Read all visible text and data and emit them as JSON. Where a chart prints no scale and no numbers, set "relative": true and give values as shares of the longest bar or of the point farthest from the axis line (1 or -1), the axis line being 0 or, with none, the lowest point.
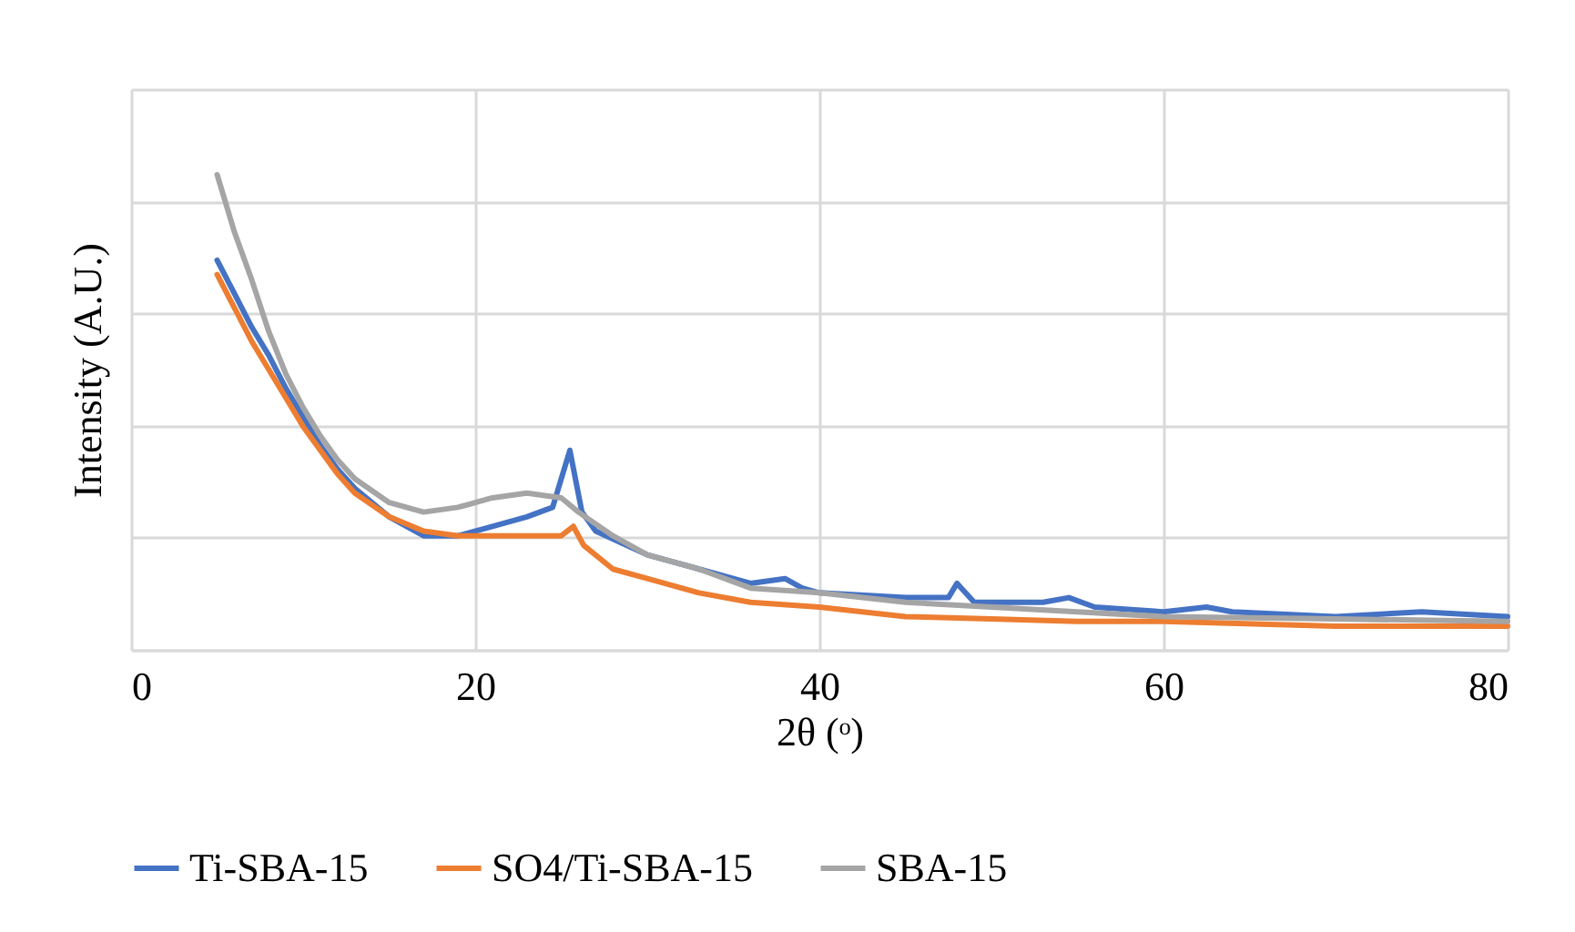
{
  "chart_data": {
    "type": "line",
    "xlabel": "2θ (ᵒ)",
    "ylabel": "Intensity (A.U.)",
    "relative": true,
    "xlim": [
      0,
      80
    ],
    "xticks": [
      0,
      20,
      40,
      60,
      80
    ],
    "grid": true,
    "legend": "bottom",
    "series": [
      {
        "name": "Ti-SBA-15",
        "color": "#4472c4",
        "x": [
          5,
          6,
          7,
          8,
          9,
          10,
          11,
          12,
          13,
          15,
          17,
          19,
          21,
          23,
          24.5,
          25.5,
          26.2,
          27,
          30,
          33,
          36,
          38,
          39,
          40,
          45,
          47.5,
          48,
          49,
          53,
          54.5,
          56,
          60,
          62.5,
          64,
          70,
          75,
          80
        ],
        "values": [
          0.82,
          0.75,
          0.68,
          0.62,
          0.55,
          0.49,
          0.43,
          0.38,
          0.34,
          0.28,
          0.24,
          0.24,
          0.26,
          0.28,
          0.3,
          0.42,
          0.29,
          0.25,
          0.2,
          0.17,
          0.14,
          0.15,
          0.13,
          0.12,
          0.11,
          0.11,
          0.14,
          0.1,
          0.1,
          0.11,
          0.09,
          0.08,
          0.09,
          0.08,
          0.07,
          0.08,
          0.07
        ]
      },
      {
        "name": "SO4/Ti-SBA-15",
        "color": "#ed7d31",
        "x": [
          5,
          6,
          7,
          8,
          9,
          10,
          11,
          12,
          13,
          15,
          17,
          19,
          21,
          23,
          25,
          25.7,
          26.3,
          28,
          30,
          33,
          36,
          40,
          45,
          50,
          55,
          60,
          70,
          80
        ],
        "values": [
          0.79,
          0.72,
          0.65,
          0.59,
          0.53,
          0.47,
          0.42,
          0.37,
          0.33,
          0.28,
          0.25,
          0.24,
          0.24,
          0.24,
          0.24,
          0.26,
          0.22,
          0.17,
          0.15,
          0.12,
          0.1,
          0.09,
          0.07,
          0.065,
          0.06,
          0.06,
          0.05,
          0.05
        ]
      },
      {
        "name": "SBA-15",
        "color": "#a5a5a5",
        "x": [
          5,
          6,
          7,
          8,
          9,
          10,
          11,
          12,
          13,
          15,
          17,
          19,
          21,
          23,
          25,
          26,
          28,
          30,
          33,
          36,
          40,
          45,
          50,
          55,
          60,
          70,
          80
        ],
        "values": [
          1.0,
          0.88,
          0.78,
          0.67,
          0.58,
          0.51,
          0.45,
          0.4,
          0.36,
          0.31,
          0.29,
          0.3,
          0.32,
          0.33,
          0.32,
          0.29,
          0.24,
          0.2,
          0.17,
          0.13,
          0.12,
          0.1,
          0.09,
          0.08,
          0.07,
          0.065,
          0.06
        ]
      }
    ]
  }
}
